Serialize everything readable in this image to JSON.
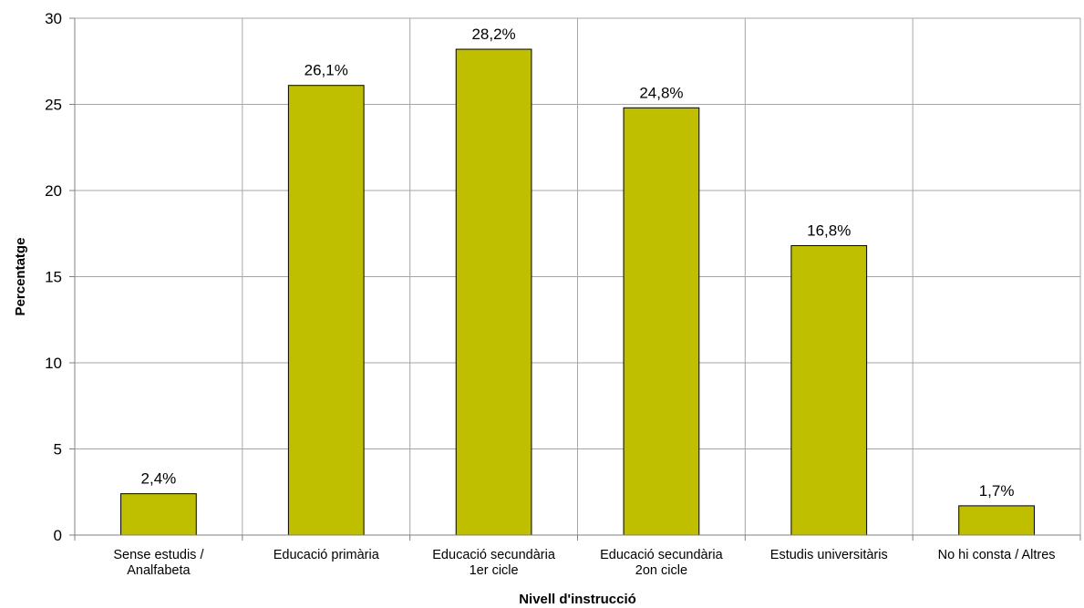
{
  "chart_data": {
    "type": "bar",
    "categories": [
      [
        "Sense estudis /",
        "Analfabeta"
      ],
      [
        "Educació primària"
      ],
      [
        "Educació secundària",
        "1er cicle"
      ],
      [
        "Educació secundària",
        "2on cicle"
      ],
      [
        "Estudis universitàris"
      ],
      [
        "No hi consta / Altres"
      ]
    ],
    "values": [
      2.4,
      26.1,
      28.2,
      24.8,
      16.8,
      1.7
    ],
    "data_labels": [
      "2,4%",
      "26,1%",
      "28,2%",
      "24,8%",
      "16,8%",
      "1,7%"
    ],
    "xlabel": "Nivell d'instrucció",
    "ylabel": "Percentatge",
    "ylim": [
      0,
      30
    ],
    "yticks": [
      0,
      5,
      10,
      15,
      20,
      25,
      30
    ],
    "grid": true,
    "colors": {
      "bar": "#bfbf00",
      "bar_stroke": "#000000",
      "grid": "#a6a6a6",
      "axis": "#808080"
    }
  }
}
